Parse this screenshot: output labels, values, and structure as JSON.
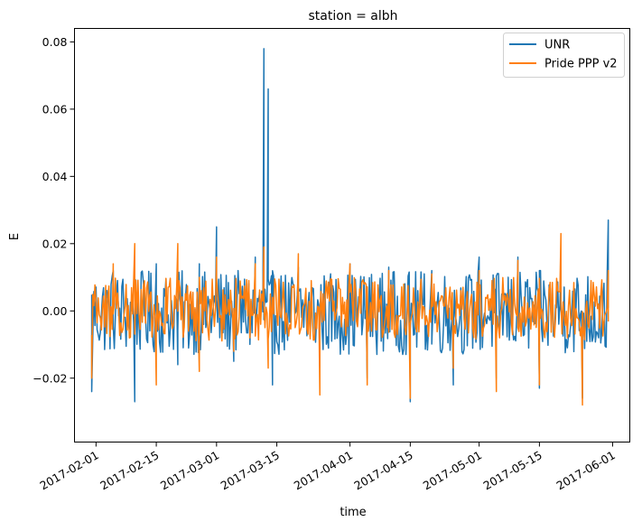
{
  "chart_data": {
    "type": "line",
    "title": "station = albh",
    "xlabel": "time",
    "ylabel": "E",
    "xlim": [
      "2017-01-27",
      "2017-06-05"
    ],
    "ylim": [
      -0.039,
      0.084
    ],
    "x_ticks": [
      "2017-02-01",
      "2017-02-15",
      "2017-03-01",
      "2017-03-15",
      "2017-04-01",
      "2017-04-15",
      "2017-05-01",
      "2017-05-15",
      "2017-06-01"
    ],
    "y_ticks": [
      -0.02,
      0.0,
      0.02,
      0.04,
      0.06,
      0.08
    ],
    "y_tick_labels": [
      "−0.02",
      "0.00",
      "0.02",
      "0.04",
      "0.06",
      "0.08"
    ],
    "legend_position": "top-right",
    "grid": false,
    "series": [
      {
        "name": "UNR",
        "color": "#1f77b4",
        "x": [
          "2017-01-31",
          "2017-02-05",
          "2017-02-10",
          "2017-02-15",
          "2017-02-20",
          "2017-02-25",
          "2017-03-01",
          "2017-03-05",
          "2017-03-10",
          "2017-03-12",
          "2017-03-13",
          "2017-03-14",
          "2017-03-20",
          "2017-03-25",
          "2017-04-01",
          "2017-04-05",
          "2017-04-10",
          "2017-04-15",
          "2017-04-20",
          "2017-04-25",
          "2017-05-01",
          "2017-05-05",
          "2017-05-10",
          "2017-05-15",
          "2017-05-20",
          "2017-05-25",
          "2017-05-31"
        ],
        "y": [
          -0.024,
          0.012,
          -0.027,
          0.014,
          -0.016,
          0.014,
          0.025,
          -0.015,
          0.016,
          0.078,
          0.066,
          -0.022,
          0.013,
          -0.017,
          0.014,
          -0.02,
          0.013,
          -0.027,
          0.012,
          -0.022,
          0.016,
          -0.02,
          0.016,
          -0.023,
          0.012,
          -0.026,
          0.027
        ],
        "lo": -0.013,
        "hi": 0.012
      },
      {
        "name": "Pride PPP v2",
        "color": "#ff7f0e",
        "x": [
          "2017-01-31",
          "2017-02-05",
          "2017-02-10",
          "2017-02-15",
          "2017-02-20",
          "2017-02-25",
          "2017-03-01",
          "2017-03-05",
          "2017-03-10",
          "2017-03-12",
          "2017-03-13",
          "2017-03-20",
          "2017-03-25",
          "2017-04-01",
          "2017-04-05",
          "2017-04-10",
          "2017-04-15",
          "2017-04-20",
          "2017-04-25",
          "2017-05-01",
          "2017-05-05",
          "2017-05-10",
          "2017-05-15",
          "2017-05-20",
          "2017-05-25",
          "2017-05-31"
        ],
        "y": [
          -0.02,
          0.014,
          0.02,
          -0.022,
          0.02,
          -0.018,
          0.016,
          -0.012,
          0.014,
          0.019,
          -0.017,
          0.017,
          -0.025,
          0.014,
          -0.022,
          0.012,
          -0.026,
          0.011,
          -0.017,
          0.012,
          -0.024,
          0.015,
          -0.022,
          0.023,
          -0.028,
          0.012
        ],
        "lo": -0.009,
        "hi": 0.01
      }
    ]
  }
}
